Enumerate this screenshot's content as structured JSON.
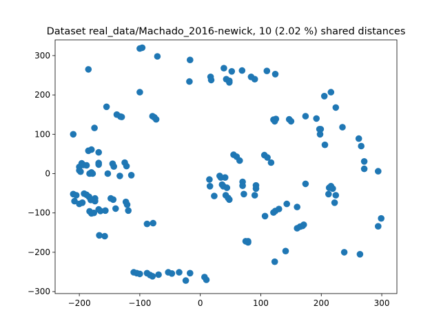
{
  "chart_data": {
    "type": "scatter",
    "title": "Dataset real_data/Machado_2016-newick, 10 (2.02 %) shared distances",
    "xlabel": "",
    "ylabel": "",
    "xlim": [
      -240,
      325
    ],
    "ylim": [
      -305,
      340
    ],
    "x_ticks": [
      -200,
      -100,
      0,
      100,
      200,
      300
    ],
    "y_ticks": [
      -300,
      -200,
      -100,
      0,
      100,
      200,
      300
    ],
    "x_tick_labels": [
      "−200",
      "−100",
      "0",
      "100",
      "200",
      "300"
    ],
    "y_tick_labels": [
      "−300",
      "−200",
      "−100",
      "0",
      "100",
      "200",
      "300"
    ],
    "grid": false,
    "marker_color": "#1f77b4",
    "points": [
      [
        -100,
        318
      ],
      [
        -96,
        320
      ],
      [
        -71,
        298
      ],
      [
        -185,
        265
      ],
      [
        -17,
        289
      ],
      [
        -100,
        207
      ],
      [
        -18,
        234
      ],
      [
        17,
        246
      ],
      [
        18,
        238
      ],
      [
        39,
        268
      ],
      [
        43,
        240
      ],
      [
        48,
        236
      ],
      [
        48,
        232
      ],
      [
        52,
        260
      ],
      [
        69,
        262
      ],
      [
        84,
        246
      ],
      [
        90,
        240
      ],
      [
        110,
        261
      ],
      [
        124,
        253
      ],
      [
        -155,
        170
      ],
      [
        -138,
        150
      ],
      [
        -132,
        145
      ],
      [
        -130,
        144
      ],
      [
        -79,
        146
      ],
      [
        -76,
        143
      ],
      [
        -73,
        138
      ],
      [
        -175,
        116
      ],
      [
        -210,
        100
      ],
      [
        -185,
        58
      ],
      [
        -180,
        61
      ],
      [
        -168,
        54
      ],
      [
        -200,
        17
      ],
      [
        -196,
        26
      ],
      [
        -193,
        22
      ],
      [
        -188,
        21
      ],
      [
        -200,
        8
      ],
      [
        -198,
        5
      ],
      [
        -180,
        3
      ],
      [
        -178,
        0
      ],
      [
        -183,
        0
      ],
      [
        -168,
        27
      ],
      [
        -168,
        23
      ],
      [
        -153,
        0
      ],
      [
        -145,
        25
      ],
      [
        -143,
        18
      ],
      [
        -133,
        -6
      ],
      [
        -125,
        28
      ],
      [
        -122,
        19
      ],
      [
        -114,
        -4
      ],
      [
        -210,
        -52
      ],
      [
        -205,
        -55
      ],
      [
        -208,
        -70
      ],
      [
        -200,
        -77
      ],
      [
        -195,
        -74
      ],
      [
        -192,
        -51
      ],
      [
        -188,
        -54
      ],
      [
        -184,
        -59
      ],
      [
        -181,
        -67
      ],
      [
        -174,
        -63
      ],
      [
        -174,
        -70
      ],
      [
        -183,
        -96
      ],
      [
        -180,
        -101
      ],
      [
        -176,
        -100
      ],
      [
        -168,
        -91
      ],
      [
        -165,
        -95
      ],
      [
        -157,
        -94
      ],
      [
        -148,
        -63
      ],
      [
        -144,
        -66
      ],
      [
        -140,
        -89
      ],
      [
        -123,
        -72
      ],
      [
        -121,
        -79
      ],
      [
        -119,
        -94
      ],
      [
        -167,
        -157
      ],
      [
        -158,
        -159
      ],
      [
        -88,
        -128
      ],
      [
        -78,
        -126
      ],
      [
        -110,
        -251
      ],
      [
        -105,
        -253
      ],
      [
        -100,
        -255
      ],
      [
        -88,
        -253
      ],
      [
        -83,
        -258
      ],
      [
        -79,
        -261
      ],
      [
        -69,
        -257
      ],
      [
        -53,
        -251
      ],
      [
        -47,
        -254
      ],
      [
        -35,
        -251
      ],
      [
        -24,
        -272
      ],
      [
        -17,
        -253
      ],
      [
        7,
        -263
      ],
      [
        10,
        -270
      ],
      [
        15,
        -15
      ],
      [
        16,
        -32
      ],
      [
        23,
        -57
      ],
      [
        32,
        -6
      ],
      [
        34,
        -10
      ],
      [
        36,
        -28
      ],
      [
        38,
        -32
      ],
      [
        41,
        -10
      ],
      [
        42,
        -55
      ],
      [
        44,
        -36
      ],
      [
        46,
        -62
      ],
      [
        48,
        -66
      ],
      [
        55,
        48
      ],
      [
        60,
        43
      ],
      [
        65,
        33
      ],
      [
        70,
        -21
      ],
      [
        70,
        -31
      ],
      [
        72,
        -52
      ],
      [
        75,
        -172
      ],
      [
        79,
        -175
      ],
      [
        79,
        -172
      ],
      [
        90,
        -55
      ],
      [
        92,
        -30
      ],
      [
        92,
        -38
      ],
      [
        106,
        47
      ],
      [
        111,
        41
      ],
      [
        117,
        28
      ],
      [
        121,
        -99
      ],
      [
        124,
        -95
      ],
      [
        130,
        -90
      ],
      [
        107,
        -108
      ],
      [
        121,
        137
      ],
      [
        123,
        133
      ],
      [
        125,
        139
      ],
      [
        147,
        138
      ],
      [
        150,
        133
      ],
      [
        123,
        -224
      ],
      [
        141,
        -197
      ],
      [
        143,
        -77
      ],
      [
        160,
        -85
      ],
      [
        160,
        -139
      ],
      [
        165,
        -135
      ],
      [
        169,
        -133
      ],
      [
        171,
        -130
      ],
      [
        174,
        146
      ],
      [
        174,
        -26
      ],
      [
        192,
        140
      ],
      [
        197,
        113
      ],
      [
        198,
        100
      ],
      [
        199,
        113
      ],
      [
        205,
        197
      ],
      [
        206,
        73
      ],
      [
        213,
        -36
      ],
      [
        216,
        -32
      ],
      [
        219,
        -38
      ],
      [
        212,
        -52
      ],
      [
        216,
        207
      ],
      [
        224,
        168
      ],
      [
        222,
        -74
      ],
      [
        224,
        -55
      ],
      [
        235,
        118
      ],
      [
        238,
        -200
      ],
      [
        262,
        89
      ],
      [
        266,
        70
      ],
      [
        264,
        -205
      ],
      [
        271,
        31
      ],
      [
        271,
        12
      ],
      [
        294,
        6
      ],
      [
        294,
        -134
      ],
      [
        299,
        -114
      ]
    ]
  }
}
